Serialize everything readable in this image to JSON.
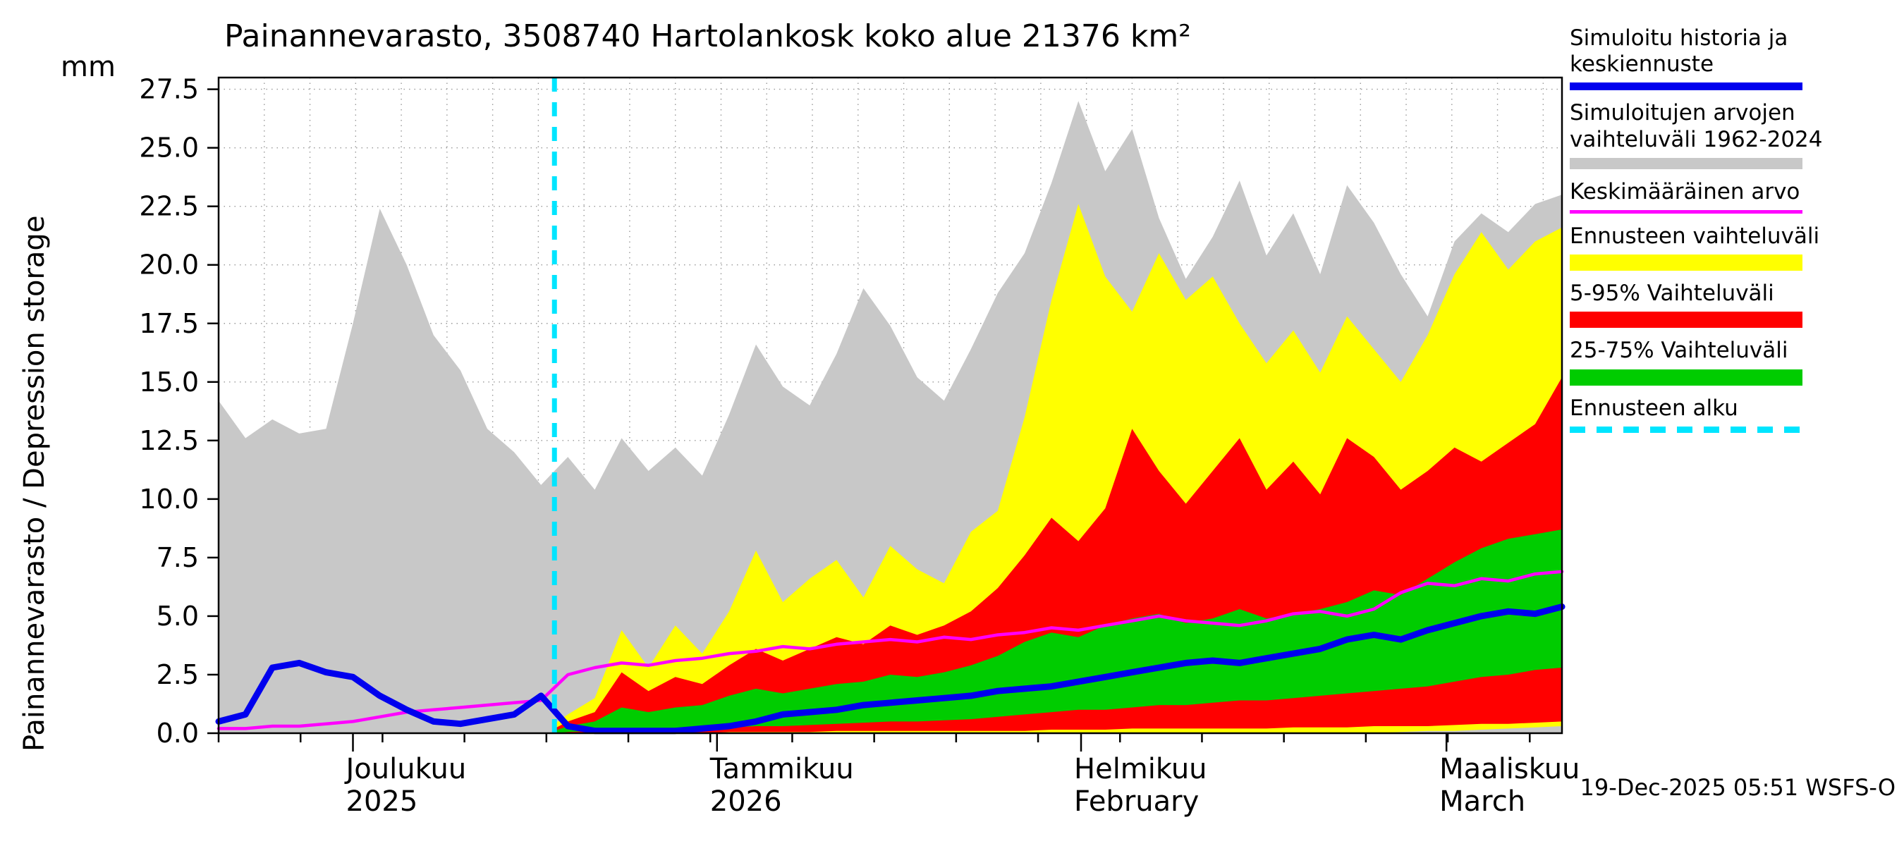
{
  "chart_data": {
    "type": "area",
    "title": "Painannevarasto, 3508740 Hartolankosk koko alue 21376 km²",
    "ylabel": "Painannevarasto / Depression storage",
    "yunit": "mm",
    "xlabel": "",
    "xlim": [
      0,
      100
    ],
    "ylim": [
      0,
      28
    ],
    "yticks": [
      0,
      2.5,
      5,
      7.5,
      10,
      12.5,
      15,
      17.5,
      20,
      22.5,
      25,
      27.5
    ],
    "grid": true,
    "legend_position": "right",
    "forecast_start_x": 25,
    "months": [
      {
        "x": 10.0,
        "line1": "Joulukuu",
        "line2": "2025"
      },
      {
        "x": 37.1,
        "line1": "Tammikuu",
        "line2": "2026"
      },
      {
        "x": 64.2,
        "line1": "Helmikuu",
        "line2": "February"
      },
      {
        "x": 91.4,
        "line1": "Maaliskuu",
        "line2": "March"
      }
    ],
    "series": {
      "x_hist": [
        0,
        2,
        4,
        6,
        8,
        10,
        12,
        14,
        16,
        18,
        20,
        22,
        24,
        26,
        28,
        30,
        32,
        34,
        36,
        38,
        40,
        42,
        44,
        46,
        48,
        50,
        52,
        54,
        56,
        58,
        60,
        62,
        64,
        66,
        68,
        70,
        72,
        74,
        76,
        78,
        80,
        82,
        84,
        86,
        88,
        90,
        92,
        94,
        96,
        98,
        100
      ],
      "history_range_max": [
        14.2,
        12.6,
        13.4,
        12.8,
        13.0,
        17.5,
        22.4,
        20.0,
        17.0,
        15.5,
        13.0,
        12.0,
        10.6,
        11.8,
        10.4,
        12.6,
        11.2,
        12.2,
        11.0,
        13.6,
        16.6,
        14.8,
        14.0,
        16.2,
        19.0,
        17.4,
        15.2,
        14.2,
        16.4,
        18.8,
        20.5,
        23.5,
        27.0,
        24.0,
        25.8,
        22.0,
        19.4,
        21.2,
        23.6,
        20.4,
        22.2,
        19.6,
        23.4,
        21.8,
        19.6,
        17.8,
        21.0,
        22.2,
        21.4,
        22.6,
        23.0
      ],
      "mean_forecast": [
        0.5,
        0.8,
        2.8,
        3.0,
        2.6,
        2.4,
        1.6,
        1.0,
        0.5,
        0.4,
        0.6,
        0.8,
        1.6,
        0.3,
        0.1,
        0.1,
        0.1,
        0.1,
        0.2,
        0.3,
        0.5,
        0.8,
        0.9,
        1.0,
        1.2,
        1.3,
        1.4,
        1.5,
        1.6,
        1.8,
        1.9,
        2.0,
        2.2,
        2.4,
        2.6,
        2.8,
        3.0,
        3.1,
        3.0,
        3.2,
        3.4,
        3.6,
        4.0,
        4.2,
        4.0,
        4.4,
        4.7,
        5.0,
        5.2,
        5.1,
        5.4
      ],
      "longterm_mean": [
        0.2,
        0.2,
        0.3,
        0.3,
        0.4,
        0.5,
        0.7,
        0.9,
        1.0,
        1.1,
        1.2,
        1.3,
        1.4,
        2.5,
        2.8,
        3.0,
        2.9,
        3.1,
        3.2,
        3.4,
        3.5,
        3.7,
        3.6,
        3.8,
        3.9,
        4.0,
        3.9,
        4.1,
        4.0,
        4.2,
        4.3,
        4.5,
        4.4,
        4.6,
        4.8,
        5.0,
        4.8,
        4.7,
        4.6,
        4.8,
        5.1,
        5.2,
        5.0,
        5.3,
        6.0,
        6.4,
        6.3,
        6.6,
        6.5,
        6.8,
        6.9
      ],
      "x_forecast": [
        25,
        26,
        28,
        30,
        32,
        34,
        36,
        38,
        40,
        42,
        44,
        46,
        48,
        50,
        52,
        54,
        56,
        58,
        60,
        62,
        64,
        66,
        68,
        70,
        72,
        74,
        76,
        78,
        80,
        82,
        84,
        86,
        88,
        90,
        92,
        94,
        96,
        98,
        100
      ],
      "forecast_range_max": [
        0.4,
        0.8,
        1.5,
        4.4,
        2.8,
        4.6,
        3.4,
        5.2,
        7.8,
        5.6,
        6.6,
        7.4,
        5.8,
        8.0,
        7.0,
        6.4,
        8.6,
        9.5,
        13.5,
        18.5,
        22.6,
        19.5,
        18.0,
        20.5,
        18.5,
        19.5,
        17.5,
        15.8,
        17.2,
        15.4,
        17.8,
        16.4,
        15.0,
        17.0,
        19.6,
        21.4,
        19.8,
        21.0,
        21.6
      ],
      "forecast_range_min": [
        0,
        0,
        0,
        0,
        0,
        0,
        0,
        0,
        0,
        0,
        0,
        0,
        0,
        0,
        0,
        0,
        0,
        0,
        0,
        0,
        0,
        0,
        0,
        0,
        0,
        0,
        0,
        0,
        0,
        0,
        0,
        0,
        0.05,
        0.1,
        0.1,
        0.15,
        0.2,
        0.25,
        0.3
      ],
      "p5_95_max": [
        0.2,
        0.5,
        0.9,
        2.6,
        1.8,
        2.4,
        2.1,
        2.9,
        3.6,
        3.1,
        3.6,
        4.1,
        3.8,
        4.6,
        4.2,
        4.6,
        5.2,
        6.2,
        7.6,
        9.2,
        8.2,
        9.6,
        13.0,
        11.2,
        9.8,
        11.2,
        12.6,
        10.4,
        11.6,
        10.2,
        12.6,
        11.8,
        10.4,
        11.2,
        12.2,
        11.6,
        12.4,
        13.2,
        15.2
      ],
      "p5_95_min": [
        0,
        0,
        0,
        0,
        0,
        0,
        0,
        0.05,
        0.05,
        0.05,
        0.05,
        0.1,
        0.1,
        0.1,
        0.1,
        0.1,
        0.1,
        0.1,
        0.1,
        0.15,
        0.15,
        0.15,
        0.2,
        0.2,
        0.2,
        0.2,
        0.2,
        0.2,
        0.25,
        0.25,
        0.25,
        0.3,
        0.3,
        0.3,
        0.35,
        0.4,
        0.4,
        0.45,
        0.5
      ],
      "p25_75_max": [
        0.1,
        0.3,
        0.5,
        1.1,
        0.9,
        1.1,
        1.2,
        1.6,
        1.9,
        1.7,
        1.9,
        2.1,
        2.2,
        2.5,
        2.4,
        2.6,
        2.9,
        3.3,
        3.9,
        4.3,
        4.1,
        4.6,
        4.9,
        5.1,
        4.7,
        4.9,
        5.3,
        4.9,
        5.1,
        5.3,
        5.6,
        6.1,
        5.9,
        6.6,
        7.3,
        7.9,
        8.3,
        8.5,
        8.7
      ],
      "p25_75_min": [
        0,
        0.05,
        0.1,
        0.15,
        0.1,
        0.15,
        0.2,
        0.25,
        0.3,
        0.3,
        0.35,
        0.4,
        0.45,
        0.5,
        0.5,
        0.55,
        0.6,
        0.7,
        0.8,
        0.9,
        1.0,
        1.0,
        1.1,
        1.2,
        1.2,
        1.3,
        1.4,
        1.4,
        1.5,
        1.6,
        1.7,
        1.8,
        1.9,
        2.0,
        2.2,
        2.4,
        2.5,
        2.7,
        2.8
      ]
    },
    "colors": {
      "history_range": "#c8c8c8",
      "mean_forecast": "#0000ee",
      "longterm_mean": "#ff00ff",
      "forecast_range": "#ffff00",
      "p5_95": "#ff0000",
      "p25_75": "#00cc00",
      "forecast_start": "#00e5ff",
      "grid": "#999999",
      "axis": "#000000"
    },
    "legend": [
      {
        "label": "Simuloitu historia ja keskiennuste",
        "color": "#0000ee",
        "style": "line-thick"
      },
      {
        "label": "Simuloitujen arvojen vaihteluväli 1962-2024",
        "color": "#c8c8c8",
        "style": "line-xthick"
      },
      {
        "label": "Keskimääräinen arvo",
        "color": "#ff00ff",
        "style": "line"
      },
      {
        "label": "Ennusteen vaihteluväli",
        "color": "#ffff00",
        "style": "patch"
      },
      {
        "label": "5-95% Vaihteluväli",
        "color": "#ff0000",
        "style": "patch"
      },
      {
        "label": "25-75% Vaihteluväli",
        "color": "#00cc00",
        "style": "patch"
      },
      {
        "label": "Ennusteen alku",
        "color": "#00e5ff",
        "style": "dashed"
      }
    ],
    "timestamp": "19-Dec-2025 05:51 WSFS-O"
  }
}
